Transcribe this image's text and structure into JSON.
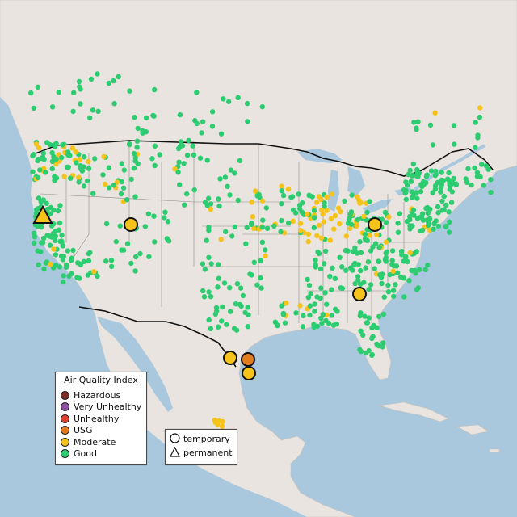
{
  "legend": {
    "title": "Air Quality Index",
    "items": [
      {
        "label": "Hazardous",
        "color": "#7e2d24",
        "icon": "hazardous-dot"
      },
      {
        "label": "Very Unhealthy",
        "color": "#8f4fa3",
        "icon": "very-unhealthy-dot"
      },
      {
        "label": "Unhealthy",
        "color": "#e33f2e",
        "icon": "unhealthy-dot"
      },
      {
        "label": "USG",
        "color": "#e47b1c",
        "icon": "usg-dot"
      },
      {
        "label": "Moderate",
        "color": "#f5c319",
        "icon": "moderate-dot"
      },
      {
        "label": "Good",
        "color": "#2ecc71",
        "icon": "good-dot"
      }
    ]
  },
  "monitor_legend": {
    "temporary_label": "temporary",
    "temporary_icon": "circle-icon",
    "permanent_label": "permanent",
    "permanent_icon": "triangle-icon"
  },
  "highlighted_sites": [
    {
      "category": "Moderate",
      "type": "permanent",
      "location": "Northern California"
    },
    {
      "category": "Moderate",
      "type": "temporary",
      "location": "Utah"
    },
    {
      "category": "Moderate",
      "type": "temporary",
      "location": "Ohio"
    },
    {
      "category": "Moderate",
      "type": "temporary",
      "location": "Tennessee"
    },
    {
      "category": "Moderate",
      "type": "temporary",
      "location": "South Texas"
    },
    {
      "category": "USG",
      "type": "temporary",
      "location": "Houston, Texas"
    },
    {
      "category": "Moderate",
      "type": "temporary",
      "location": "Texas Gulf Coast"
    }
  ]
}
